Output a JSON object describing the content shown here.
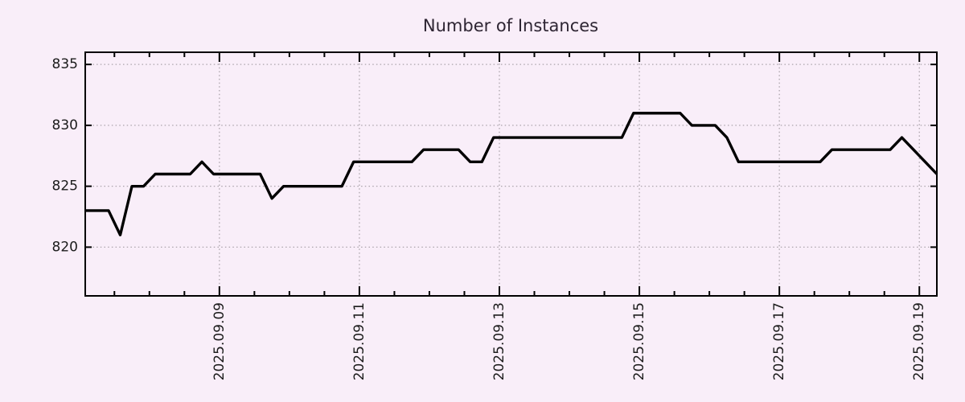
{
  "title": "Number of Instances",
  "chart_data": {
    "type": "line",
    "title": "Number of Instances",
    "xlabel": "",
    "ylabel": "",
    "legend": "none",
    "grid": "dotted",
    "background_color": "#f9eef9",
    "grid_color": "#aba4ab",
    "axis_color": "#000000",
    "text_color": "#1c1c1c",
    "title_color": "#2e2533",
    "line_color": "#000000",
    "sample_interval_hours": 4,
    "x_axis": {
      "start": "2025-09-07T02:00",
      "end": "2025-09-19T06:00",
      "minor_tick_interval_hours": 12,
      "major_ticks": [
        {
          "time": "2025-09-09T00:00",
          "label": "2025.09.09"
        },
        {
          "time": "2025-09-11T00:00",
          "label": "2025.09.11"
        },
        {
          "time": "2025-09-13T00:00",
          "label": "2025.09.13"
        },
        {
          "time": "2025-09-15T00:00",
          "label": "2025.09.15"
        },
        {
          "time": "2025-09-17T00:00",
          "label": "2025.09.17"
        },
        {
          "time": "2025-09-19T00:00",
          "label": "2025.09.19"
        }
      ]
    },
    "y_axis": {
      "min": 816,
      "max": 836,
      "ticks": [
        820,
        825,
        830,
        835
      ]
    },
    "series": [
      {
        "name": "Number of Instances",
        "color": "#000000",
        "start": "2025-09-07T02:00",
        "interval_hours": 4,
        "values": [
          823,
          823,
          823,
          821,
          825,
          825,
          826,
          826,
          826,
          826,
          827,
          826,
          826,
          826,
          826,
          826,
          824,
          825,
          825,
          825,
          825,
          825,
          825,
          827,
          827,
          827,
          827,
          827,
          827,
          828,
          828,
          828,
          828,
          827,
          827,
          829,
          829,
          829,
          829,
          829,
          829,
          829,
          829,
          829,
          829,
          829,
          829,
          831,
          831,
          831,
          831,
          831,
          830,
          830,
          830,
          829,
          827,
          827,
          827,
          827,
          827,
          827,
          827,
          827,
          828,
          828,
          828,
          828,
          828,
          828,
          829,
          828,
          827,
          826
        ]
      }
    ]
  }
}
